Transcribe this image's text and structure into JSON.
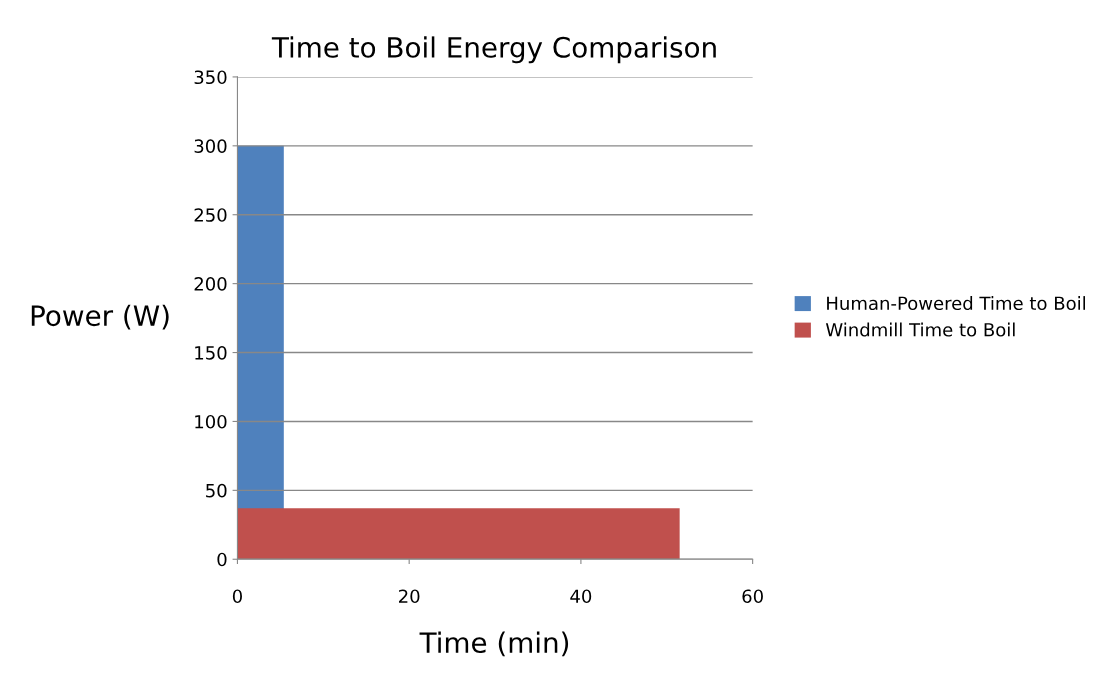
{
  "chart_data": {
    "type": "area",
    "title": "Time to Boil Energy Comparison",
    "xlabel": "Time (min)",
    "ylabel": "Power (W)",
    "series": [
      {
        "name": "Human-Powered Time to Boil",
        "color": "#4f81bd",
        "x": [
          0,
          5.4
        ],
        "values": [
          300,
          300
        ]
      },
      {
        "name": "Windmill Time to Boil",
        "color": "#c0504d",
        "x": [
          0,
          51.5
        ],
        "values": [
          37,
          37
        ]
      }
    ],
    "xlim": [
      0,
      60
    ],
    "xticks": [
      0,
      20,
      40,
      60
    ],
    "ylim": [
      0,
      350
    ],
    "yticks": [
      0,
      50,
      100,
      150,
      200,
      250,
      300,
      350
    ],
    "grid": "y",
    "legend": "right"
  }
}
